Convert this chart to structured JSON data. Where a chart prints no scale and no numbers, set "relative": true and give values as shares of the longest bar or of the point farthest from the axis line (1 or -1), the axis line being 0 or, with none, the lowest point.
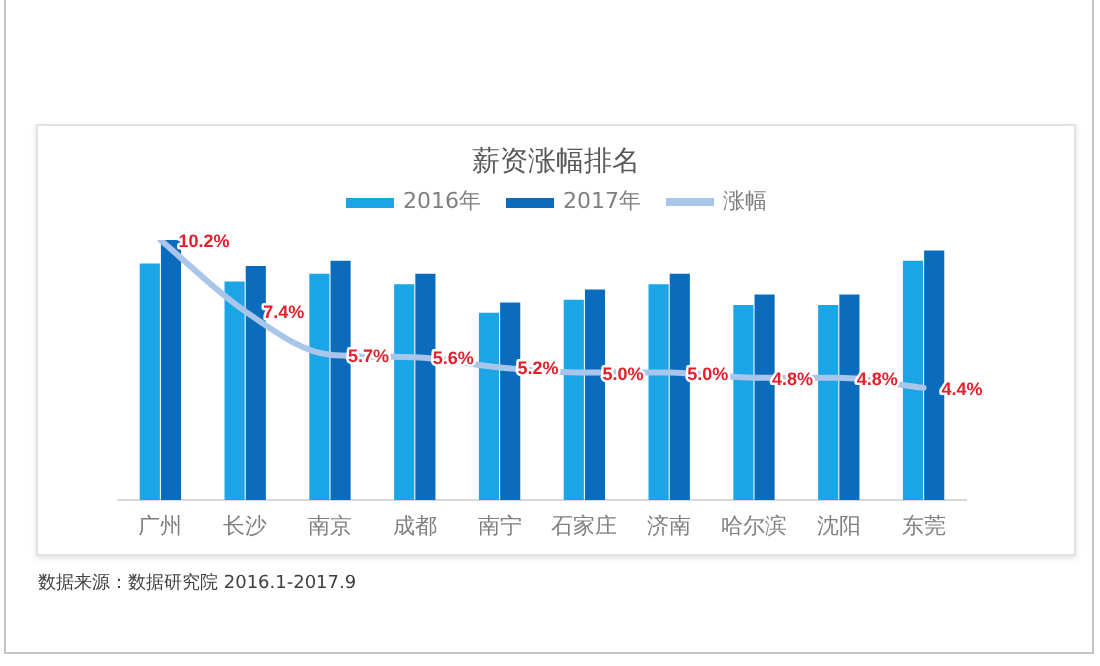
{
  "chart_data": [
    {
      "type": "bar",
      "title": "薪资涨幅排名",
      "relative": true,
      "legend": "top",
      "categories": [
        "广州",
        "长沙",
        "南京",
        "成都",
        "南宁",
        "石家庄",
        "济南",
        "哈尔滨",
        "沈阳",
        "东莞"
      ],
      "series": [
        {
          "name": "2016年",
          "color": "#1aa5e6",
          "values": [
            0.91,
            0.84,
            0.87,
            0.83,
            0.72,
            0.77,
            0.83,
            0.75,
            0.75,
            0.92
          ]
        },
        {
          "name": "2017年",
          "color": "#0b6cbd",
          "values": [
            1.0,
            0.9,
            0.92,
            0.87,
            0.76,
            0.81,
            0.87,
            0.79,
            0.79,
            0.96
          ]
        }
      ],
      "annotations": [
        "数据来源：数据研究院 2016.1-2017.9"
      ]
    },
    {
      "type": "line",
      "legend": "top",
      "marker": "none",
      "tick_labels": false,
      "categories": [
        null,
        null,
        null,
        null,
        null,
        null,
        null,
        null,
        null,
        null
      ],
      "series": [
        {
          "name": "涨幅",
          "color": "#a9c5e9",
          "values": [
            10.2,
            7.4,
            5.7,
            5.6,
            5.2,
            5.0,
            5.0,
            4.8,
            4.8,
            4.4
          ],
          "value_labels": [
            "10.2%",
            "7.4%",
            "5.7%",
            "5.6%",
            "5.2%",
            "5.0%",
            "5.0%",
            "4.8%",
            "4.8%",
            "4.4%"
          ]
        }
      ]
    }
  ]
}
